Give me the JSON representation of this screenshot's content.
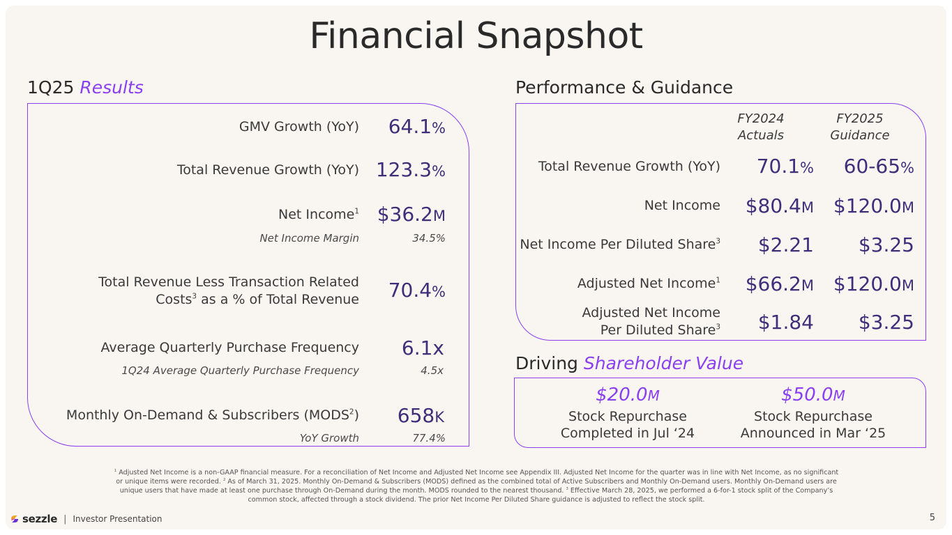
{
  "title": "Financial Snapshot",
  "left": {
    "heading_plain": "1Q25 ",
    "heading_accent": "Results",
    "rows": [
      {
        "label": "GMV Growth (YoY)",
        "value": "64.1",
        "unit": "%"
      },
      {
        "label": "Total Revenue Growth (YoY)",
        "value": "123.3",
        "unit": "%"
      },
      {
        "label": "Net Income",
        "sup": "1",
        "value": "$36.2",
        "unit": "M",
        "sub_label": "Net Income Margin",
        "sub_value": "34.5%"
      },
      {
        "label_line1": "Total Revenue Less Transaction Related",
        "label_line2": "Costs",
        "sup": "3",
        "label_line2_rest": " as a % of Total Revenue",
        "value": "70.4",
        "unit": "%"
      },
      {
        "label": "Average Quarterly Purchase Frequency",
        "value": "6.1x",
        "sub_label": "1Q24 Average Quarterly Purchase Frequency",
        "sub_value": "4.5x"
      },
      {
        "label": "Monthly On-Demand & Subscribers (MODS",
        "sup": "2",
        "label_end": ")",
        "value": "658",
        "unit": "K",
        "sub_label": "YoY Growth",
        "sub_value": "77.4%"
      }
    ]
  },
  "right": {
    "heading": "Performance & Guidance",
    "col1": {
      "line1": "FY2024",
      "line2": "Actuals"
    },
    "col2": {
      "line1": "FY2025",
      "line2": "Guidance"
    },
    "rows": [
      {
        "label": "Total Revenue Growth (YoY)",
        "v1": "70.1",
        "u1": "%",
        "v2": "60-65",
        "u2": "%"
      },
      {
        "label": "Net Income",
        "v1": "$80.4",
        "u1": "M",
        "v2": "$120.0",
        "u2": "M"
      },
      {
        "label": "Net Income Per Diluted Share",
        "sup": "3",
        "v1": "$2.21",
        "u1": "",
        "v2": "$3.25",
        "u2": ""
      },
      {
        "label": "Adjusted Net Income",
        "sup": "1",
        "v1": "$66.2",
        "u1": "M",
        "v2": "$120.0",
        "u2": "M"
      },
      {
        "label_line1": "Adjusted Net Income",
        "label_line2": "Per Diluted Share",
        "sup": "3",
        "v1": "$1.84",
        "u1": "",
        "v2": "$3.25",
        "u2": ""
      }
    ]
  },
  "shareholder": {
    "heading_plain": "Driving ",
    "heading_accent": "Shareholder Value",
    "items": [
      {
        "amount": "$20.0",
        "unit": "M",
        "line1": "Stock Repurchase",
        "line2": "Completed in Jul ‘24"
      },
      {
        "amount": "$50.0",
        "unit": "M",
        "line1": "Stock Repurchase",
        "line2": "Announced in Mar ‘25"
      }
    ]
  },
  "footnote": {
    "s1": "1",
    "t1": " Adjusted Net Income is a non-GAAP financial measure. For a reconciliation of Net Income and Adjusted Net Income see Appendix III. Adjusted Net Income for the quarter was in line with Net Income, as no significant or unique items were recorded. ",
    "s2": "2",
    "t2": " As of March 31, 2025. Monthly On-Demand & Subscribers (MODS) defined as the combined total of Active Subscribers and Monthly On-Demand users. Monthly On-Demand users are unique users that have made at least one purchase through On-Demand during the month. MODS rounded to the nearest thousand. ",
    "s3": "3",
    "t3": " Effective March 28, 2025, we performed a 6-for-1 stock split of the Company’s common stock, affected through a stock dividend. The prior Net Income Per Diluted Share guidance is adjusted to reflect the stock split."
  },
  "footer": {
    "logo": "sezzle",
    "separator": "|",
    "text": "Investor Presentation",
    "page": "5"
  },
  "colors": {
    "accent": "#8a3ff0",
    "value": "#3d2f7a",
    "background": "#f9f6f1"
  }
}
